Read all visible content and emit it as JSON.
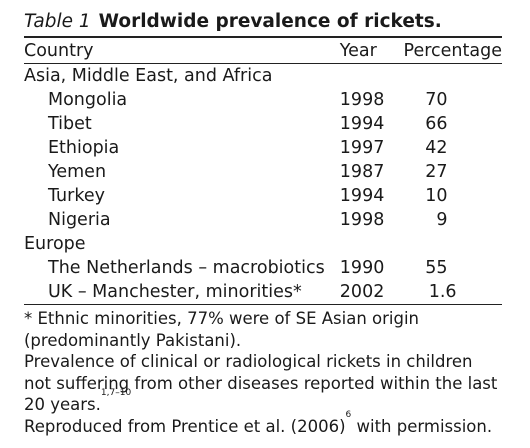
{
  "caption": {
    "number": "Table 1",
    "title": "Worldwide prevalence of rickets."
  },
  "columns": [
    "Country",
    "Year",
    "Percentage"
  ],
  "groups": [
    {
      "name": "Asia, Middle East, and Africa",
      "rows": [
        {
          "country": "Mongolia",
          "year": "1998",
          "percentage": "70"
        },
        {
          "country": "Tibet",
          "year": "1994",
          "percentage": "66"
        },
        {
          "country": "Ethiopia",
          "year": "1997",
          "percentage": "42"
        },
        {
          "country": "Yemen",
          "year": "1987",
          "percentage": "27"
        },
        {
          "country": "Turkey",
          "year": "1994",
          "percentage": "10"
        },
        {
          "country": "Nigeria",
          "year": "1998",
          "percentage": "9"
        }
      ]
    },
    {
      "name": "Europe",
      "rows": [
        {
          "country": "The Netherlands – macrobiotics",
          "year": "1990",
          "percentage": "55"
        },
        {
          "country": "UK – Manchester, minorities*",
          "year": "2002",
          "percentage": "1.6"
        }
      ]
    }
  ],
  "footnotes": {
    "asterisk": "* Ethnic minorities, 77% were of SE Asian origin (predominantly Pakistani).",
    "prevalence": "Prevalence of clinical or radiological rickets in children not suffering from other diseases reported within the last 20 years.",
    "prevalence_refs": "1,7–10",
    "reproduced_before": "Reproduced from Prentice et al. (2006)",
    "reproduced_ref": "6",
    "reproduced_after": " with permission."
  }
}
